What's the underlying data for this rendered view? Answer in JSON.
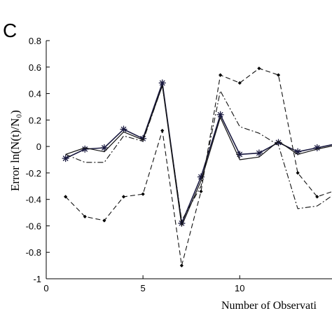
{
  "chart_data": {
    "type": "line",
    "panel_label": "C",
    "title": "",
    "xlabel": "Number of Observati",
    "ylabel": "Error ln(N(t)/N₀)",
    "xlim": [
      0,
      16
    ],
    "ylim": [
      -1,
      0.8
    ],
    "x_ticks": [
      0,
      5,
      10
    ],
    "y_ticks": [
      -1,
      -0.8,
      -0.6,
      -0.4,
      -0.2,
      0,
      0.2,
      0.4,
      0.6,
      0.8
    ],
    "grid": false,
    "series": [
      {
        "style": "solid-star",
        "x": [
          1,
          2,
          3,
          4,
          5,
          6,
          7,
          8,
          9,
          10,
          11,
          12,
          13,
          14,
          15
        ],
        "y": [
          -0.09,
          -0.02,
          -0.01,
          0.13,
          0.06,
          0.48,
          -0.58,
          -0.23,
          0.24,
          -0.06,
          -0.05,
          0.03,
          -0.04,
          -0.01,
          0.02
        ]
      },
      {
        "style": "solid",
        "x": [
          1,
          2,
          3,
          4,
          5,
          6,
          7,
          8,
          9,
          10,
          11,
          12,
          13,
          14,
          15
        ],
        "y": [
          -0.06,
          -0.01,
          -0.04,
          0.11,
          0.05,
          0.46,
          -0.6,
          -0.26,
          0.22,
          -0.1,
          -0.08,
          0.04,
          -0.06,
          -0.02,
          0.01
        ]
      },
      {
        "style": "dash-dot",
        "x": [
          1,
          2,
          3,
          4,
          5,
          6,
          7,
          8,
          9,
          10,
          11,
          12,
          13,
          14,
          15
        ],
        "y": [
          -0.06,
          -0.12,
          -0.12,
          0.08,
          0.04,
          0.46,
          -0.56,
          -0.3,
          0.42,
          0.15,
          0.1,
          0.01,
          -0.47,
          -0.45,
          -0.35
        ]
      },
      {
        "style": "dashed-diamond",
        "x": [
          1,
          2,
          3,
          4,
          5,
          6,
          7,
          8,
          9,
          10,
          11,
          12,
          13,
          14,
          15
        ],
        "y": [
          -0.38,
          -0.53,
          -0.56,
          -0.38,
          -0.36,
          0.12,
          -0.9,
          -0.34,
          0.54,
          0.48,
          0.59,
          0.54,
          -0.2,
          -0.38,
          -0.33
        ]
      }
    ]
  }
}
